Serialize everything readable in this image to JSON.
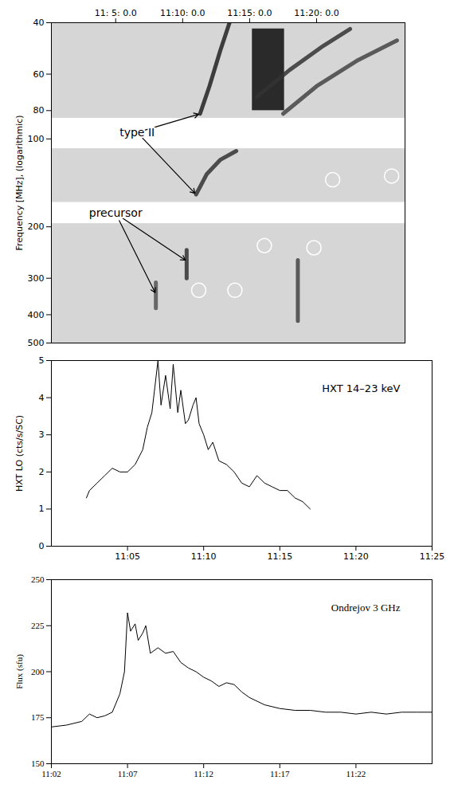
{
  "chart_data": [
    {
      "type": "spectrogram",
      "ylabel": "Frequency [MHz], (logarithmic)",
      "log": "y",
      "xlim": [
        0.2,
        26.6
      ],
      "xticks": [
        {
          "value": 5,
          "label": "11: 5: 0.0"
        },
        {
          "value": 10,
          "label": "11:10: 0.0"
        },
        {
          "value": 15,
          "label": "11:15: 0.0"
        },
        {
          "value": 20,
          "label": "11:20: 0.0"
        }
      ],
      "ylim": [
        40,
        500
      ],
      "yticks": [
        40,
        60,
        80,
        100,
        200,
        300,
        400,
        500
      ],
      "gaps": [
        [
          85,
          108
        ],
        [
          165,
          195
        ]
      ],
      "dark_regions": [
        {
          "x1": 15.2,
          "x2": 17.6,
          "y1": 42,
          "y2": 80
        }
      ],
      "features": [
        {
          "x": [
            11.3,
            12.0,
            12.8,
            13.5
          ],
          "y": [
            82,
            66,
            50,
            40
          ],
          "color": "#222222"
        },
        {
          "x": [
            11.0,
            11.8,
            12.8,
            14.0
          ],
          "y": [
            155,
            132,
            118,
            110
          ],
          "color": "#333333"
        },
        {
          "x": [
            15.5,
            18.0,
            20.5,
            22.5
          ],
          "y": [
            72,
            58,
            48,
            42
          ],
          "color": "#333333"
        },
        {
          "x": [
            17.5,
            20.0,
            23.0,
            26.0
          ],
          "y": [
            82,
            66,
            54,
            46
          ],
          "color": "#444444"
        },
        {
          "x": [
            10.3,
            10.3
          ],
          "y": [
            240,
            300
          ],
          "color": "#333333"
        },
        {
          "x": [
            8.0,
            8.0
          ],
          "y": [
            310,
            380
          ],
          "color": "#555555"
        },
        {
          "x": [
            18.6,
            18.6
          ],
          "y": [
            260,
            420
          ],
          "color": "#444444"
        }
      ],
      "markers": {
        "x": [
          11.2,
          13.9,
          16.1,
          19.8,
          21.2,
          25.6
        ],
        "y": [
          330,
          330,
          232,
          236,
          138,
          134
        ],
        "color": "#ffffff"
      },
      "annotations": [
        {
          "text": "type II",
          "x": 6.6,
          "y": 95,
          "targets": [
            {
              "x": 11.3,
              "y": 82
            },
            {
              "x": 11.0,
              "y": 155
            }
          ]
        },
        {
          "text": "precursor",
          "x": 5.0,
          "y": 180,
          "targets": [
            {
              "x": 10.3,
              "y": 262
            },
            {
              "x": 8.0,
              "y": 340
            }
          ]
        }
      ]
    },
    {
      "type": "line",
      "title": "HXT 14–23 keV",
      "ylabel": "HXT LO (cts/s/SC)",
      "xlim": [
        0,
        25
      ],
      "xticks": [
        {
          "value": 5,
          "label": "11:05"
        },
        {
          "value": 10,
          "label": "11:10"
        },
        {
          "value": 15,
          "label": "11:15"
        },
        {
          "value": 20,
          "label": "11:20"
        },
        {
          "value": 25,
          "label": "11:25"
        }
      ],
      "ylim": [
        0,
        5
      ],
      "yticks": [
        0,
        1,
        2,
        3,
        4,
        5
      ],
      "color": "#000000",
      "x": [
        2.3,
        2.5,
        3.0,
        3.5,
        4.0,
        4.5,
        5.0,
        5.5,
        6.0,
        6.3,
        6.6,
        6.8,
        7.0,
        7.2,
        7.5,
        7.8,
        8.0,
        8.3,
        8.5,
        8.8,
        9.0,
        9.3,
        9.5,
        9.7,
        10.0,
        10.3,
        10.6,
        11.0,
        11.5,
        12.0,
        12.5,
        13.0,
        13.5,
        14.0,
        14.5,
        15.0,
        15.5,
        16.0,
        16.5,
        17.0
      ],
      "values": [
        1.3,
        1.5,
        1.7,
        1.9,
        2.1,
        2.0,
        2.0,
        2.2,
        2.6,
        3.2,
        3.6,
        4.3,
        5.0,
        3.8,
        4.6,
        3.7,
        4.9,
        3.6,
        4.2,
        3.3,
        3.4,
        3.8,
        4.0,
        3.3,
        3.0,
        2.6,
        2.8,
        2.3,
        2.2,
        2.0,
        1.7,
        1.6,
        1.9,
        1.7,
        1.6,
        1.5,
        1.5,
        1.3,
        1.2,
        1.0
      ]
    },
    {
      "type": "line",
      "title": "Ondrejov 3 GHz",
      "ylabel": "Flux (sfu)",
      "xlim": [
        2,
        27
      ],
      "xticks": [
        {
          "value": 2,
          "label": "11:02"
        },
        {
          "value": 7,
          "label": "11:07"
        },
        {
          "value": 12,
          "label": "11:12"
        },
        {
          "value": 17,
          "label": "11:17"
        },
        {
          "value": 22,
          "label": "11:22"
        }
      ],
      "ylim": [
        150,
        250
      ],
      "yticks": [
        150,
        175,
        200,
        225,
        250
      ],
      "color": "#000000",
      "x": [
        2,
        3,
        4,
        4.5,
        5,
        5.5,
        6,
        6.5,
        6.8,
        7.0,
        7.2,
        7.5,
        7.7,
        8.0,
        8.2,
        8.5,
        9.0,
        9.5,
        10.0,
        10.5,
        11.0,
        11.5,
        12.0,
        12.5,
        13.0,
        13.5,
        14.0,
        14.5,
        15.0,
        16.0,
        17.0,
        18.0,
        19.0,
        20.0,
        21.0,
        22.0,
        23.0,
        24.0,
        25.0,
        26.0,
        27.0
      ],
      "values": [
        170,
        171,
        173,
        177,
        175,
        176,
        178,
        188,
        200,
        232,
        222,
        226,
        217,
        221,
        225,
        210,
        213,
        210,
        211,
        205,
        202,
        200,
        197,
        195,
        192,
        194,
        193,
        189,
        186,
        182,
        180,
        179,
        179,
        178,
        178,
        177,
        178,
        177,
        178,
        178,
        178
      ]
    }
  ]
}
